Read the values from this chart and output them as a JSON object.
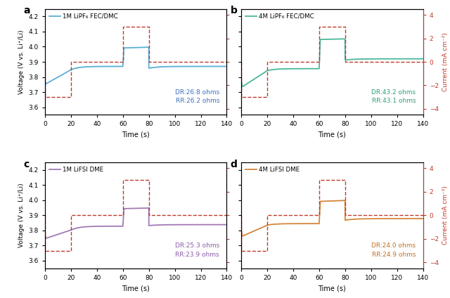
{
  "subplots": [
    {
      "label": "a",
      "legend": "1M LiPF₆ FEC/DMC",
      "line_color": "#5bafd6",
      "dr": "DR:26.8 ohms",
      "rr": "RR:26.2 ohms",
      "text_color": "#3a6fbf",
      "v0": 3.775,
      "v_drop": 3.755,
      "v_relax1": 3.848,
      "v_rest1": 3.87,
      "v_jump": 3.992,
      "v_charge_end": 3.997,
      "v_drop2": 3.858,
      "v_relax2": 3.87
    },
    {
      "label": "b",
      "legend": "4M LiPF₆ FEC/DMC",
      "line_color": "#4ab89a",
      "dr": "DR:43.2 ohms",
      "rr": "RR:43.1 ohms",
      "text_color": "#2e9e7a",
      "v0": 3.775,
      "v_drop": 3.735,
      "v_relax1": 3.842,
      "v_rest1": 3.855,
      "v_jump": 4.048,
      "v_charge_end": 4.052,
      "v_drop2": 3.912,
      "v_relax2": 3.92
    },
    {
      "label": "c",
      "legend": "1M LiFSI DME",
      "line_color": "#a07ab5",
      "dr": "DR:25.3 ohms",
      "rr": "RR:23.9 ohms",
      "text_color": "#8b5ba8",
      "v0": 3.77,
      "v_drop": 3.748,
      "v_relax1": 3.802,
      "v_rest1": 3.828,
      "v_jump": 3.944,
      "v_charge_end": 3.948,
      "v_drop2": 3.832,
      "v_relax2": 3.838
    },
    {
      "label": "d",
      "legend": "4M LiFSI DME",
      "line_color": "#d4853a",
      "dr": "DR:24.0 ohms",
      "rr": "RR:24.9 ohms",
      "text_color": "#c07020",
      "v0": 3.8,
      "v_drop": 3.762,
      "v_relax1": 3.835,
      "v_rest1": 3.845,
      "v_jump": 3.992,
      "v_charge_end": 3.998,
      "v_drop2": 3.868,
      "v_relax2": 3.878
    }
  ],
  "current_color": "#c0392b",
  "ylim_v": [
    3.55,
    4.25
  ],
  "ylim_i": [
    -4.5,
    4.5
  ],
  "xlim": [
    0,
    140
  ],
  "xticks": [
    0,
    20,
    40,
    60,
    80,
    100,
    120,
    140
  ],
  "yticks_v": [
    3.6,
    3.7,
    3.8,
    3.9,
    4.0,
    4.1,
    4.2
  ],
  "yticks_i": [
    -4,
    -2,
    0,
    2,
    4
  ],
  "xlabel": "Time (s)",
  "ylabel_v": "Voltage (V vs. Li⁺/Li)",
  "ylabel_i": "Current (mA cm⁻²)"
}
